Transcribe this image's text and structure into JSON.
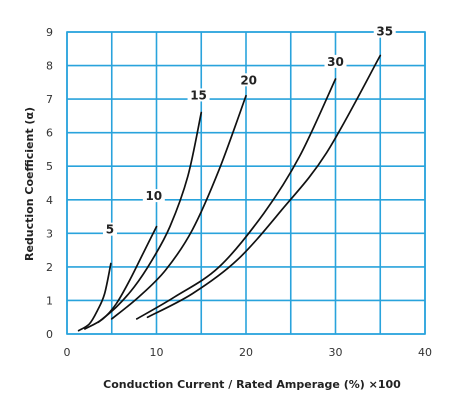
{
  "chart_data": {
    "type": "line",
    "xlabel": "Conduction Current / Rated Amperage (%) ×100",
    "ylabel": "Reduction Coefficient (α)",
    "xlim": [
      0,
      40
    ],
    "ylim": [
      0,
      9
    ],
    "x_ticks": [
      "0",
      "10",
      "20",
      "30",
      "40"
    ],
    "y_ticks": [
      "0",
      "1",
      "2",
      "3",
      "4",
      "5",
      "6",
      "7",
      "8",
      "9"
    ],
    "grid": true,
    "colors": {
      "grid": "#29a3dc",
      "curve": "#111111"
    },
    "series": [
      {
        "name": "5",
        "points": [
          [
            1.3,
            0.1
          ],
          [
            2.5,
            0.3
          ],
          [
            3.4,
            0.7
          ],
          [
            4.2,
            1.2
          ],
          [
            4.9,
            2.1
          ]
        ],
        "label_at": [
          4.8,
          3.05
        ]
      },
      {
        "name": "10",
        "points": [
          [
            2.0,
            0.15
          ],
          [
            4.0,
            0.45
          ],
          [
            5.5,
            0.9
          ],
          [
            7.0,
            1.6
          ],
          [
            8.5,
            2.4
          ],
          [
            10.0,
            3.2
          ]
        ],
        "label_at": [
          9.7,
          4.05
        ]
      },
      {
        "name": "15",
        "points": [
          [
            3.5,
            0.35
          ],
          [
            5.5,
            0.8
          ],
          [
            7.5,
            1.4
          ],
          [
            9.5,
            2.2
          ],
          [
            11.5,
            3.2
          ],
          [
            13.5,
            4.7
          ],
          [
            15.0,
            6.6
          ]
        ],
        "label_at": [
          14.7,
          7.05
        ]
      },
      {
        "name": "20",
        "points": [
          [
            5.0,
            0.45
          ],
          [
            8.0,
            1.1
          ],
          [
            11.0,
            1.9
          ],
          [
            14.0,
            3.1
          ],
          [
            17.0,
            4.9
          ],
          [
            20.0,
            7.1
          ]
        ],
        "label_at": [
          20.3,
          7.5
        ]
      },
      {
        "name": "30",
        "points": [
          [
            7.8,
            0.45
          ],
          [
            12.0,
            1.1
          ],
          [
            17.0,
            2.0
          ],
          [
            22.0,
            3.6
          ],
          [
            26.0,
            5.3
          ],
          [
            30.0,
            7.6
          ]
        ],
        "label_at": [
          30.0,
          8.05
        ]
      },
      {
        "name": "35",
        "points": [
          [
            9.0,
            0.5
          ],
          [
            14.0,
            1.2
          ],
          [
            19.0,
            2.2
          ],
          [
            24.0,
            3.7
          ],
          [
            29.0,
            5.4
          ],
          [
            35.0,
            8.3
          ]
        ],
        "label_at": [
          35.5,
          8.95
        ]
      }
    ]
  }
}
